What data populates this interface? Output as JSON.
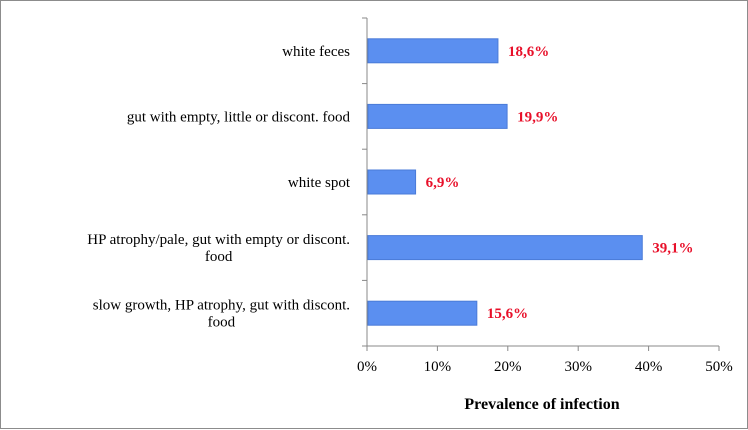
{
  "chart_data": {
    "type": "bar",
    "orientation": "horizontal",
    "categories": [
      [
        "white feces"
      ],
      [
        "gut with empty, little or discont. food"
      ],
      [
        "white spot"
      ],
      [
        "HP atrophy/pale, gut with empty or discont.",
        "food"
      ],
      [
        "slow growth, HP atrophy, gut with discont.",
        "food"
      ]
    ],
    "values": [
      18.6,
      19.9,
      6.9,
      39.1,
      15.6
    ],
    "data_labels": [
      "18,6%",
      "19,9%",
      "6,9%",
      "39,1%",
      "15,6%"
    ],
    "xlim": [
      0,
      50
    ],
    "ticks": [
      0,
      10,
      20,
      30,
      40,
      50
    ],
    "tick_labels": [
      "0%",
      "10%",
      "20%",
      "30%",
      "40%",
      "50%"
    ],
    "xlabel": "Prevalence of infection",
    "ylabel": "",
    "grid": false,
    "legend": "none",
    "colors": {
      "bar_fill": "#5b8ff0",
      "bar_stroke": "#4a7bd8",
      "data_label": "#e8102a",
      "axis": "#888888"
    }
  }
}
